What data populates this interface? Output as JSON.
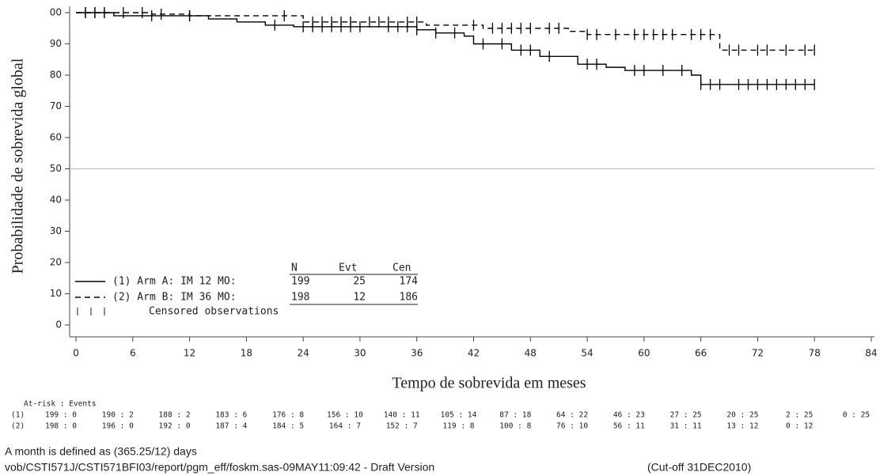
{
  "chart_data": {
    "type": "step",
    "y_label": "Probabilidade de sobrevida global",
    "x_label": "Tempo de sobrevida em meses",
    "xlim": [
      0,
      84
    ],
    "xticks": [
      0,
      6,
      12,
      18,
      24,
      30,
      36,
      42,
      48,
      54,
      60,
      66,
      72,
      78,
      84
    ],
    "ylim": [
      0,
      100
    ],
    "yticks": [
      0,
      10,
      20,
      30,
      40,
      50,
      60,
      70,
      80,
      90,
      {
        "value": 100,
        "label": "00"
      }
    ],
    "reference_line": 50,
    "legend_headers": [
      "N",
      "Evt",
      "Cen"
    ],
    "censored_label": "Censored observations",
    "series": [
      {
        "name": "(1) Arm A: IM 12 MO:",
        "color": "#000000",
        "dash": "solid",
        "n": "199",
        "evt": "25",
        "cen": "174",
        "x": [
          0,
          4,
          4,
          14,
          14,
          17,
          17,
          20,
          20,
          23,
          23,
          36,
          36,
          38,
          38,
          41,
          41,
          42,
          42,
          46,
          46,
          49,
          49,
          53,
          53,
          56,
          56,
          58,
          58,
          65,
          65,
          66,
          66,
          78
        ],
        "values": [
          100,
          100,
          99,
          99,
          98,
          98,
          97,
          97,
          96,
          96,
          95.5,
          95.5,
          94.5,
          94.5,
          93.5,
          93.5,
          92.5,
          92.5,
          90,
          90,
          88,
          88,
          86,
          86,
          83.5,
          83.5,
          82.5,
          82.5,
          81.5,
          81.5,
          80,
          80,
          77,
          77
        ],
        "censored_x": [
          1,
          2,
          3,
          8,
          12,
          21,
          24,
          25,
          26,
          27,
          28,
          29,
          30,
          33,
          34,
          35,
          36,
          38,
          40,
          43,
          45,
          47,
          48,
          50,
          54,
          55,
          59,
          60,
          62,
          64,
          66,
          67,
          68,
          70,
          71,
          72,
          73,
          74,
          75,
          76,
          77,
          78
        ]
      },
      {
        "name": "(2) Arm B: IM 36 MO:",
        "color": "#000000",
        "dash": "dashed",
        "n": "198",
        "evt": "12",
        "cen": "186",
        "x": [
          0,
          8,
          8,
          12,
          12,
          24,
          24,
          37,
          37,
          43,
          43,
          52,
          52,
          54,
          54,
          68,
          68,
          78
        ],
        "values": [
          100,
          100,
          99.5,
          99.5,
          99,
          99,
          97,
          97,
          96,
          96,
          95,
          95,
          94,
          94,
          93,
          93,
          88,
          88
        ],
        "censored_x": [
          1,
          2,
          3,
          5,
          7,
          9,
          12,
          22,
          25,
          26,
          27,
          28,
          29,
          31,
          32,
          33,
          35,
          36,
          42,
          44,
          45,
          46,
          47,
          48,
          50,
          51,
          54,
          55,
          57,
          59,
          60,
          61,
          62,
          63,
          65,
          66,
          67,
          69,
          70,
          72,
          73,
          75,
          77,
          78
        ]
      }
    ],
    "at_risk": {
      "title": "At-risk : Events",
      "rows": [
        {
          "label": "(1)",
          "values": [
            "199 : 0",
            "190 : 2",
            "188 : 2",
            "183 : 6",
            "176 : 8",
            "156 : 10",
            "140 : 11",
            "105 : 14",
            "87 : 18",
            "64 : 22",
            "46 : 23",
            "27 : 25",
            "20 : 25",
            "2 : 25",
            "0 : 25"
          ]
        },
        {
          "label": "(2)",
          "values": [
            "198 : 0",
            "196 : 0",
            "192 : 0",
            "187 : 4",
            "184 : 5",
            "164 : 7",
            "152 : 7",
            "119 : 8",
            "100 : 8",
            "76 : 10",
            "56 : 11",
            "31 : 11",
            "13 : 12",
            "0 : 12"
          ]
        }
      ]
    },
    "notes": [
      "A month is defined as (365.25/12) days",
      "vob/CSTI571J/CSTI571BFI03/report/pgm_eff/foskm.sas-09MAY11:09:42 - Draft Version",
      "(Cut-off 31DEC2010)"
    ]
  }
}
